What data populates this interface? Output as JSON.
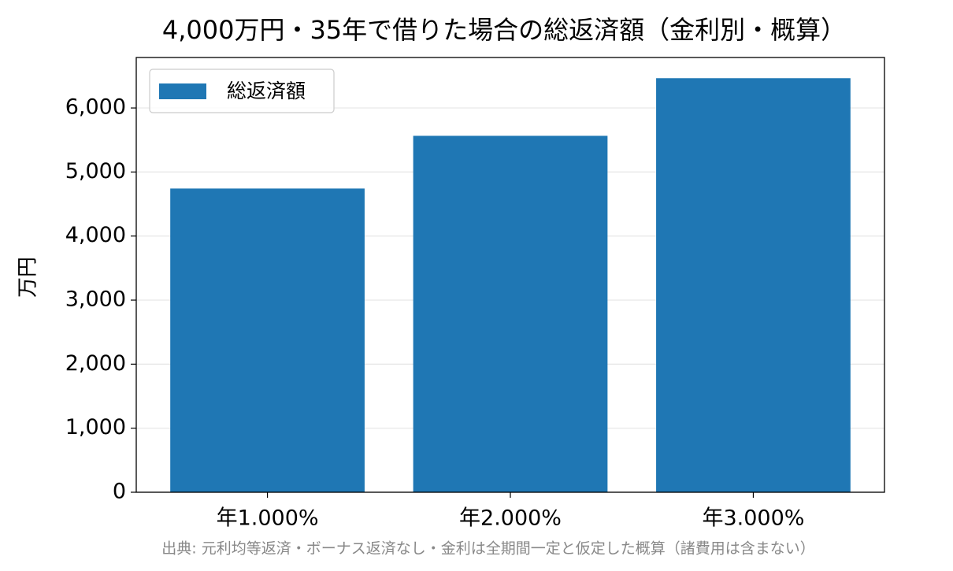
{
  "chart_data": {
    "type": "bar",
    "title": "4,000万円・35年で借りた場合の総返済額（金利別・概算）",
    "y_label": "万円",
    "footnote": "出典: 元利均等返済・ボーナス返済なし・金利は全期間一定と仮定した概算（諸費用は含まない）",
    "categories": [
      "年1.000%",
      "年2.000%",
      "年3.000%"
    ],
    "series": [
      {
        "name": "総返済額",
        "color": "#1f77b4",
        "values": [
          4742,
          5565,
          6465
        ]
      }
    ],
    "ylim": [
      0,
      6788
    ],
    "yticks": [
      0,
      {
        "value": 1000,
        "label": "1,000"
      },
      {
        "value": 2000,
        "label": "2,000"
      },
      {
        "value": 3000,
        "label": "3,000"
      },
      {
        "value": 4000,
        "label": "4,000"
      },
      {
        "value": 5000,
        "label": "5,000"
      },
      {
        "value": 6000,
        "label": "6,000"
      }
    ],
    "grid": true,
    "legend": "upper-left"
  }
}
